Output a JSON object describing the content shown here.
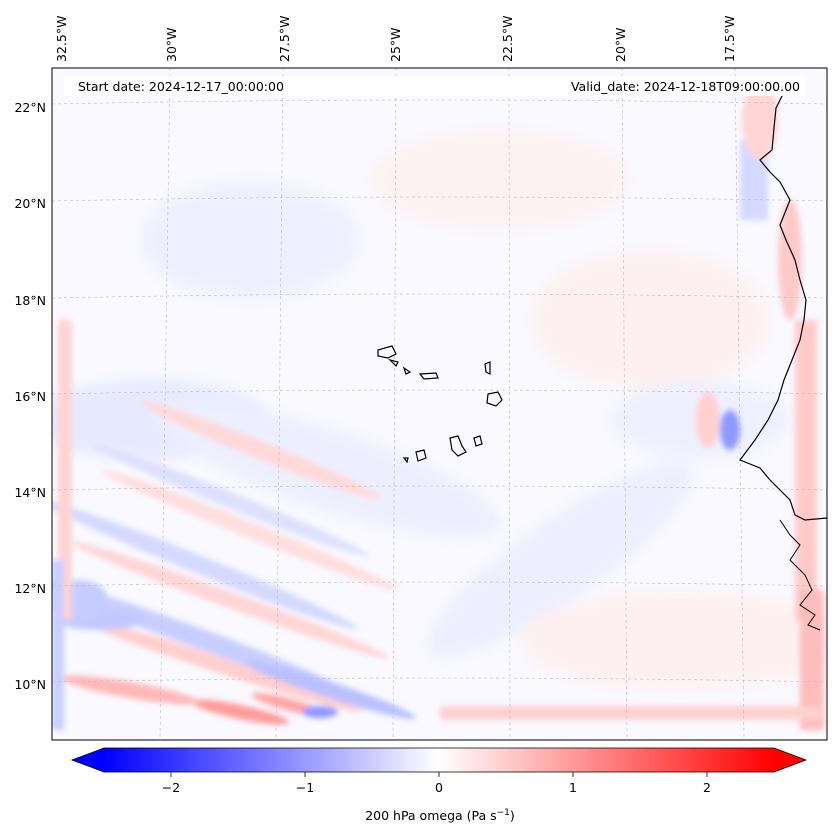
{
  "map": {
    "start_date": "Start date: 2024-12-17_00:00:00",
    "valid_date": "Valid_date: 2024-12-18T09:00:00.00",
    "lon_labels": [
      "32.5°W",
      "30°W",
      "27.5°W",
      "25°W",
      "22.5°W",
      "20°W",
      "17.5°W"
    ],
    "lat_labels": [
      "22°N",
      "20°N",
      "18°N",
      "16°N",
      "14°N",
      "12°N",
      "10°N"
    ],
    "features": [
      "Cape Verde islands",
      "West African coastline"
    ]
  },
  "colorbar": {
    "label_prefix": "200 hPa omega (Pa s",
    "label_exp": "−1",
    "label_suffix": ")",
    "ticks": [
      {
        "value": -2,
        "label": "−2"
      },
      {
        "value": -1,
        "label": "−1"
      },
      {
        "value": 0,
        "label": "0"
      },
      {
        "value": 1,
        "label": "1"
      },
      {
        "value": 2,
        "label": "2"
      }
    ],
    "range": [
      -2.75,
      2.75
    ],
    "color_min": "#0000ff",
    "color_mid": "#ffffff",
    "color_max": "#ff0000"
  }
}
